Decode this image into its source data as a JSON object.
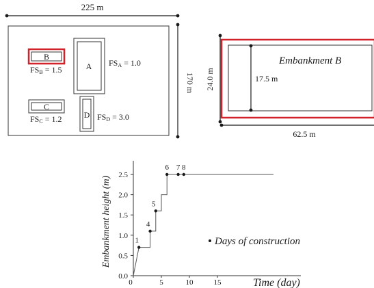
{
  "plan_view": {
    "width_label": "225 m",
    "height_label": "170 m",
    "embankments": [
      {
        "id": "B",
        "label": "B",
        "fs_text": "FSB = 1.5",
        "fs_main": "FS",
        "fs_sub": "B",
        "fs_val": " = 1.5",
        "highlighted": true
      },
      {
        "id": "A",
        "label": "A",
        "fs_text": "FSA = 1.0",
        "fs_main": "FS",
        "fs_sub": "A",
        "fs_val": " = 1.0",
        "highlighted": false
      },
      {
        "id": "C",
        "label": "C",
        "fs_text": "FSC = 1.2",
        "fs_main": "FS",
        "fs_sub": "C",
        "fs_val": " = 1.2",
        "highlighted": false
      },
      {
        "id": "D",
        "label": "D",
        "fs_text": "FSD = 3.0",
        "fs_main": "FS",
        "fs_sub": "D",
        "fs_val": " = 3.0",
        "highlighted": false
      }
    ]
  },
  "detail_view": {
    "title": "Embankment B",
    "width_label": "62.5 m",
    "height_label": "24.0 m",
    "inner_label": "17.5 m"
  },
  "chart_data": {
    "type": "line",
    "xlabel": "Time (day)",
    "ylabel": "Embankment height (m)",
    "xlim": [
      0,
      40
    ],
    "ylim": [
      0,
      3.0
    ],
    "xticks": [
      0,
      5,
      10,
      15
    ],
    "xtick_labels": [
      "0",
      "5",
      "10",
      "15"
    ],
    "yticks": [
      0,
      0.5,
      1.0,
      1.5,
      2.0,
      2.5
    ],
    "ytick_labels": [
      "0.0",
      "0.5",
      "1.0",
      "1.5",
      "2.0",
      "2.5"
    ],
    "series": [
      {
        "x": [
          0,
          1,
          1,
          3,
          3,
          4,
          4,
          5,
          5,
          6,
          6,
          7,
          8,
          9,
          25
        ],
        "y": [
          0,
          0.7,
          0.7,
          0.7,
          1.1,
          1.1,
          1.6,
          1.6,
          2.0,
          2.0,
          2.5,
          2.5,
          2.5,
          2.5,
          2.5
        ]
      }
    ],
    "construction_days": [
      {
        "label": "1",
        "x": 1,
        "y": 0.7
      },
      {
        "label": "4",
        "x": 3,
        "y": 1.1
      },
      {
        "label": "5",
        "x": 4,
        "y": 1.6
      },
      {
        "label": "6",
        "x": 6,
        "y": 2.5
      },
      {
        "label": "7",
        "x": 8,
        "y": 2.5
      },
      {
        "label": "8",
        "x": 9,
        "y": 2.5
      }
    ],
    "legend_label": "Days of construction",
    "legend_position": "right",
    "grid": false
  },
  "colors": {
    "highlight": "#d2232a",
    "ink": "#1a1a1a",
    "line": "#555555"
  }
}
